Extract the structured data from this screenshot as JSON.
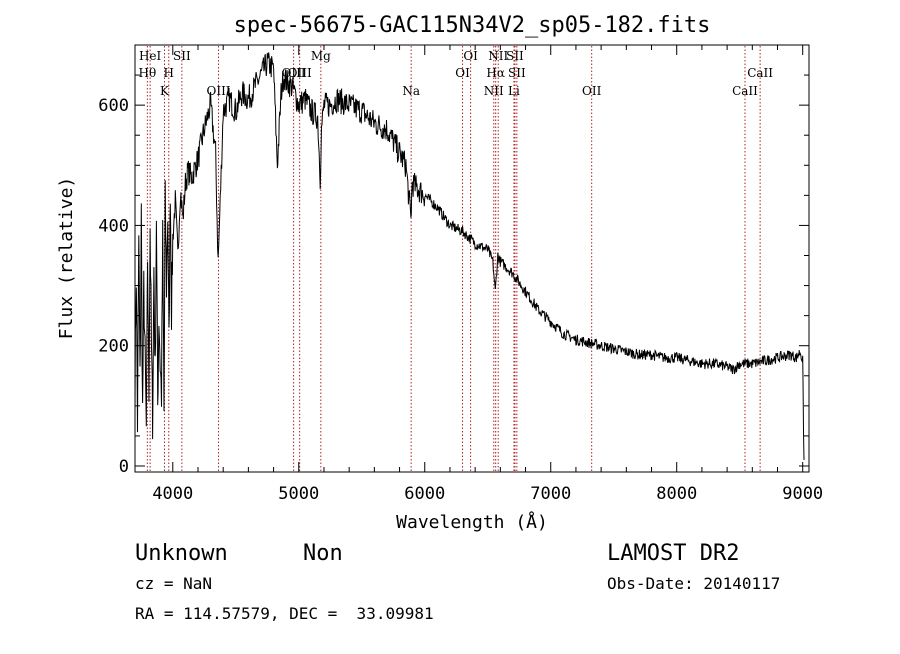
{
  "chart_data": {
    "type": "line",
    "title": "spec-56675-GAC115N34V2_sp05-182.fits",
    "xlabel": "Wavelength (Å)",
    "ylabel": "Flux (relative)",
    "xlim": [
      3700,
      9050
    ],
    "ylim": [
      -10,
      700
    ],
    "xticks": [
      4000,
      5000,
      6000,
      7000,
      8000,
      9000
    ],
    "yticks": [
      0,
      200,
      400,
      600
    ],
    "grid": false,
    "line_color": "#000000",
    "marker_color": "#b22222",
    "series": [
      {
        "x": [
          3700,
          3710,
          3720,
          3730,
          3740,
          3750,
          3760,
          3770,
          3780,
          3790,
          3800,
          3810,
          3820,
          3830,
          3840,
          3850,
          3860,
          3870,
          3880,
          3890,
          3900,
          3910,
          3920,
          3930,
          3940,
          3950,
          3960,
          3970,
          3980,
          3990,
          4000,
          4020,
          4040,
          4060,
          4080,
          4100,
          4120,
          4150,
          4200,
          4250,
          4300,
          4340,
          4360,
          4400,
          4450,
          4500,
          4550,
          4600,
          4650,
          4700,
          4750,
          4800,
          4830,
          4860,
          4880,
          4900,
          4950,
          5000,
          5050,
          5100,
          5150,
          5170,
          5180,
          5200,
          5250,
          5300,
          5400,
          5500,
          5600,
          5700,
          5800,
          5850,
          5890,
          5900,
          5950,
          6000,
          6100,
          6200,
          6300,
          6400,
          6500,
          6540,
          6560,
          6580,
          6600,
          6700,
          6800,
          6900,
          7000,
          7100,
          7200,
          7300,
          7400,
          7500,
          7600,
          7700,
          7800,
          7900,
          8000,
          8100,
          8200,
          8300,
          8400,
          8450,
          8500,
          8600,
          8700,
          8800,
          8900,
          8950,
          8980,
          9000,
          9010
        ],
        "y": [
          130,
          320,
          70,
          380,
          140,
          420,
          90,
          300,
          180,
          60,
          350,
          120,
          400,
          200,
          80,
          330,
          150,
          420,
          100,
          250,
          170,
          120,
          380,
          90,
          440,
          300,
          420,
          200,
          470,
          260,
          380,
          440,
          350,
          460,
          410,
          470,
          490,
          480,
          510,
          560,
          600,
          520,
          340,
          590,
          610,
          590,
          620,
          610,
          630,
          650,
          670,
          660,
          500,
          620,
          650,
          640,
          630,
          600,
          610,
          590,
          580,
          480,
          560,
          600,
          600,
          610,
          600,
          590,
          570,
          560,
          520,
          500,
          410,
          470,
          460,
          450,
          430,
          400,
          390,
          370,
          360,
          340,
          290,
          350,
          340,
          320,
          290,
          260,
          240,
          220,
          210,
          205,
          200,
          195,
          190,
          185,
          185,
          180,
          180,
          175,
          170,
          170,
          165,
          160,
          170,
          170,
          175,
          180,
          185,
          180,
          190,
          175,
          10
        ]
      }
    ],
    "line_markers": [
      {
        "label": "Hθ",
        "x": 3798,
        "tier": 2
      },
      {
        "label": "HeI",
        "x": 3820,
        "tier": 1
      },
      {
        "label": "K",
        "x": 3934,
        "tier": 3
      },
      {
        "label": "H",
        "x": 3968,
        "tier": 2
      },
      {
        "label": "SII",
        "x": 4072,
        "tier": 1
      },
      {
        "label": "OIII",
        "x": 4363,
        "tier": 3
      },
      {
        "label": "OIII",
        "x": 4959,
        "tier": 2
      },
      {
        "label": "OIII",
        "x": 5007,
        "tier": 2
      },
      {
        "label": "Mg",
        "x": 5175,
        "tier": 1
      },
      {
        "label": "Na",
        "x": 5892,
        "tier": 3
      },
      {
        "label": "OI",
        "x": 6300,
        "tier": 2
      },
      {
        "label": "OI",
        "x": 6364,
        "tier": 1
      },
      {
        "label": "NII",
        "x": 6548,
        "tier": 3
      },
      {
        "label": "Hα",
        "x": 6563,
        "tier": 2
      },
      {
        "label": "NII",
        "x": 6583,
        "tier": 1
      },
      {
        "label": "Li",
        "x": 6708,
        "tier": 3
      },
      {
        "label": "SII",
        "x": 6716,
        "tier": 1
      },
      {
        "label": "SII",
        "x": 6731,
        "tier": 2
      },
      {
        "label": "OII",
        "x": 7325,
        "tier": 3
      },
      {
        "label": "CaII",
        "x": 8542,
        "tier": 3
      },
      {
        "label": "CaII",
        "x": 8662,
        "tier": 2
      }
    ]
  },
  "footer": {
    "object_class": "Unknown",
    "subclass": "Non",
    "survey": "LAMOST DR2",
    "cz": "cz = NaN",
    "obs_date": "Obs-Date: 20140117",
    "coords": "RA = 114.57579, DEC =  33.09981"
  }
}
